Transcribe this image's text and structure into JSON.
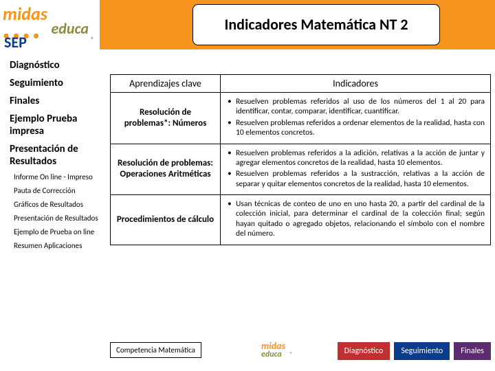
{
  "header": {
    "logo_top": "midas",
    "logo_bottom": "educa",
    "reg": "®",
    "title": "Indicadores Matemática NT 2",
    "sep": "SEP"
  },
  "sidebar": {
    "items": [
      {
        "label": "Diagnóstico",
        "type": "main"
      },
      {
        "label": "Seguimiento",
        "type": "main"
      },
      {
        "label": "Finales",
        "type": "main"
      },
      {
        "label": "Ejemplo Prueba impresa",
        "type": "main"
      },
      {
        "label": "Presentación de Resultados",
        "type": "main"
      },
      {
        "label": "Informe On line - Impreso",
        "type": "sub"
      },
      {
        "label": "Pauta de Corrección",
        "type": "sub"
      },
      {
        "label": "Gráficos de Resultados",
        "type": "sub"
      },
      {
        "label": "Presentación de Resultados",
        "type": "sub"
      },
      {
        "label": "Ejemplo de Prueba on line",
        "type": "sub"
      },
      {
        "label": "Resumen Aplicaciones",
        "type": "sub"
      }
    ]
  },
  "table": {
    "head": {
      "col1": "Aprendizajes clave",
      "col2": "Indicadores"
    },
    "rows": [
      {
        "key": "Resolución de problemas*: Números",
        "bullets": [
          "Resuelven problemas referidos al uso de los números del 1 al 20 para identificar, contar, comparar, identificar, cuantificar.",
          "Resuelven problemas referidos a ordenar elementos de la realidad, hasta con 10 elementos concretos."
        ]
      },
      {
        "key": "Resolución de problemas: Operaciones Aritméticas",
        "bullets": [
          "Resuelven problemas referidos a la adición, relativas a la acción de juntar y agregar elementos concretos de la realidad, hasta 10 elementos.",
          "Resuelven problemas referidos a la sustracción, relativas a la acción de separar y quitar elementos concretos de la realidad, hasta 10 elementos."
        ]
      },
      {
        "key": "Procedimientos de cálculo",
        "bullets": [
          "Usan técnicas de conteo de uno en uno hasta 20, a partir del cardinal de la colección inicial, para determinar el cardinal de la colección final; según hayan quitado o agregado objetos, relacionando el símbolo con el nombre del número."
        ]
      }
    ]
  },
  "footer": {
    "box": "Competencia Matemática",
    "logo_top": "midas",
    "logo_bottom": "educa",
    "reg": "®",
    "btn1": "Diagnóstico",
    "btn2": "Seguimiento",
    "btn3": "Finales"
  }
}
